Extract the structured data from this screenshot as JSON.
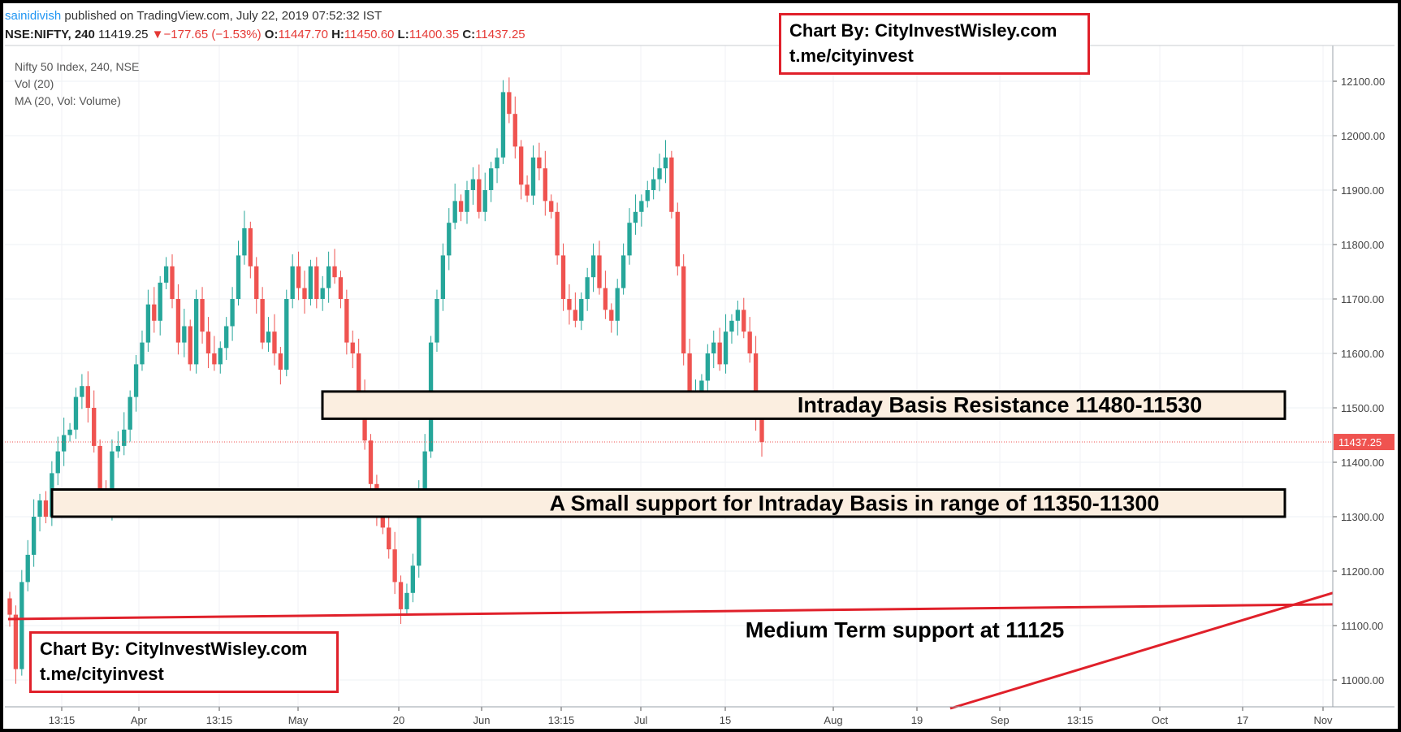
{
  "header": {
    "author": "sainidivish",
    "published": "published on TradingView.com, July 22, 2019 07:52:32 IST",
    "symbol": "NSE:NIFTY, 240",
    "last": "11419.25",
    "change_arrow": "▼",
    "change": "−177.65 (−1.53%)",
    "o_label": "O:",
    "o_value": "11447.70",
    "h_label": "H:",
    "h_value": "11450.60",
    "l_label": "L:",
    "l_value": "11400.35",
    "c_label": "C:",
    "c_value": "11437.25"
  },
  "legend": {
    "main": "Nifty 50 Index, 240, NSE",
    "vol": "Vol (20)",
    "ma": "MA (20, Vol: Volume)"
  },
  "watermark": {
    "line1": "Chart By: CityInvestWisley.com",
    "line2": "t.me/cityinvest"
  },
  "colors": {
    "up": "#26a69a",
    "down": "#ef5350",
    "annotation_line": "#e0202a",
    "zone_fill": "#fbeee0",
    "price_label_bg": "#ef5350"
  },
  "chart_data": {
    "type": "candlestick",
    "title": "Nifty 50 Index, 240, NSE",
    "ylim": [
      10950,
      12140
    ],
    "y_ticks": [
      "12100.00",
      "12000.00",
      "11900.00",
      "11800.00",
      "11700.00",
      "11600.00",
      "11500.00",
      "11400.00",
      "11300.00",
      "11200.00",
      "11100.00",
      "11000.00"
    ],
    "x_ticks": [
      "13:15",
      "Apr",
      "13:15",
      "May",
      "20",
      "Jun",
      "13:15",
      "Jul",
      "15",
      "Aug",
      "19",
      "Sep",
      "13:15",
      "Oct",
      "17",
      "Nov"
    ],
    "last_price": 11437.25,
    "last_price_label": "11437.25",
    "zones": [
      {
        "label": "Intraday Basis Resistance 11480-11530",
        "low": 11480,
        "high": 11530
      },
      {
        "label": "A Small support for Intraday Basis in range of 11350-11300",
        "low": 11300,
        "high": 11350
      }
    ],
    "support_line": {
      "label": "Medium Term support at 11125",
      "value": 11125
    },
    "candle_closes": [
      11120,
      11020,
      11180,
      11230,
      11300,
      11330,
      11300,
      11380,
      11420,
      11450,
      11460,
      11520,
      11540,
      11500,
      11430,
      11350,
      11320,
      11420,
      11430,
      11460,
      11520,
      11580,
      11620,
      11690,
      11660,
      11730,
      11760,
      11700,
      11620,
      11650,
      11580,
      11700,
      11640,
      11600,
      11580,
      11610,
      11650,
      11700,
      11780,
      11830,
      11760,
      11700,
      11620,
      11640,
      11600,
      11570,
      11700,
      11760,
      11720,
      11700,
      11760,
      11700,
      11720,
      11760,
      11740,
      11700,
      11620,
      11600,
      11520,
      11440,
      11360,
      11310,
      11280,
      11240,
      11180,
      11130,
      11160,
      11210,
      11340,
      11420,
      11620,
      11700,
      11780,
      11840,
      11880,
      11860,
      11900,
      11920,
      11860,
      11900,
      11940,
      11960,
      12080,
      12040,
      11980,
      11910,
      11890,
      11960,
      11940,
      11880,
      11860,
      11780,
      11700,
      11680,
      11660,
      11700,
      11740,
      11780,
      11720,
      11680,
      11660,
      11720,
      11780,
      11840,
      11860,
      11880,
      11900,
      11920,
      11940,
      11960,
      11860,
      11760,
      11600,
      11520,
      11520,
      11550,
      11600,
      11620,
      11580,
      11640,
      11660,
      11680,
      11640,
      11600,
      11480,
      11437.25
    ]
  },
  "annotations": {
    "resistance": "Intraday Basis Resistance 11480-11530",
    "support_small": "A Small support for Intraday Basis in range of 11350-11300",
    "medium_support": "Medium Term support at 11125"
  }
}
